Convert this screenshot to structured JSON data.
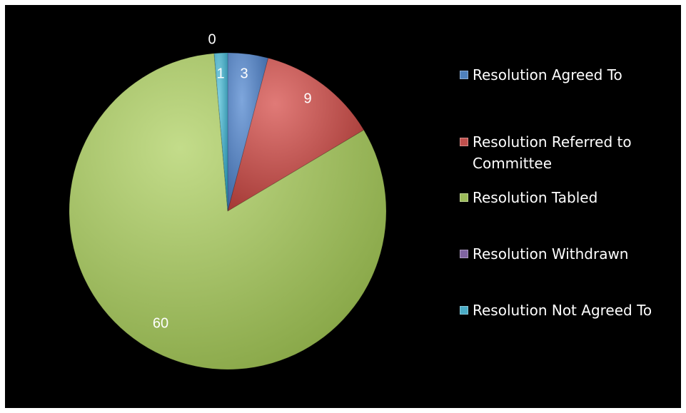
{
  "chart_data": {
    "type": "pie",
    "categories": [
      "Resolution Agreed To",
      "Resolution Referred to Committee",
      "Resolution Tabled",
      "Resolution Withdrawn",
      "Resolution Not Agreed To"
    ],
    "values": [
      3,
      9,
      60,
      0,
      1
    ],
    "data_labels": [
      "3",
      "9",
      "60",
      "0",
      "1"
    ],
    "colors": [
      "#4f81bd",
      "#c0504d",
      "#9bbb59",
      "#8064a2",
      "#4bacc6"
    ],
    "legend_position": "right",
    "background": "#000000"
  }
}
